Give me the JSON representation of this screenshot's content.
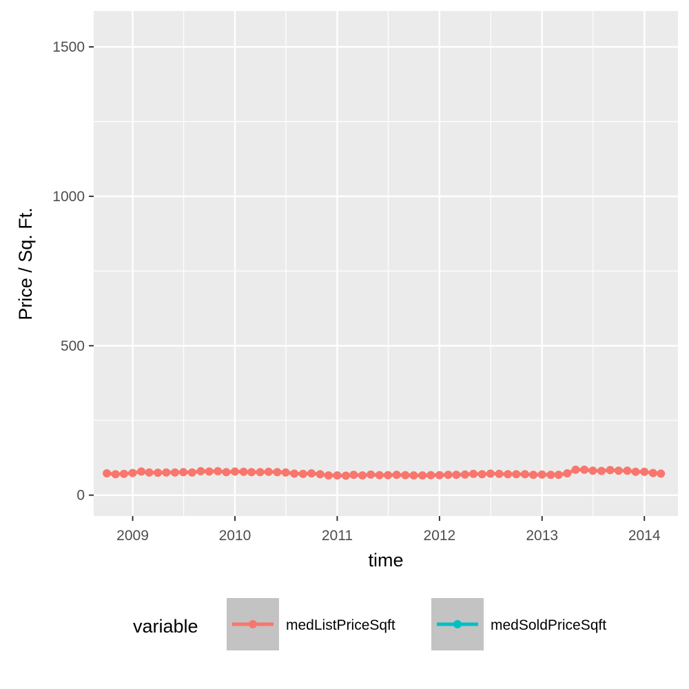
{
  "chart_data": {
    "type": "line",
    "xlabel": "time",
    "ylabel": "Price / Sq. Ft.",
    "xlim": [
      "2008-08-15",
      "2014-05-01"
    ],
    "ylim": [
      -70,
      1620
    ],
    "x_ticks": [
      {
        "date": "2009-01-01",
        "label": "2009"
      },
      {
        "date": "2010-01-01",
        "label": "2010"
      },
      {
        "date": "2011-01-01",
        "label": "2011"
      },
      {
        "date": "2012-01-01",
        "label": "2012"
      },
      {
        "date": "2013-01-01",
        "label": "2013"
      },
      {
        "date": "2014-01-01",
        "label": "2014"
      }
    ],
    "y_ticks": [
      0,
      500,
      1000,
      1500
    ],
    "y_minor": [
      250,
      750,
      1250
    ],
    "grid": true,
    "legend": {
      "title": "variable",
      "position": "bottom",
      "entries": [
        {
          "label": "medListPriceSqft",
          "color": "#F8766D"
        },
        {
          "label": "medSoldPriceSqft",
          "color": "#00BFC4"
        }
      ]
    },
    "series": [
      {
        "name": "medListPriceSqft",
        "color": "#F8766D",
        "x": [
          "2008-10",
          "2008-11",
          "2008-12",
          "2009-01",
          "2009-02",
          "2009-03",
          "2009-04",
          "2009-05",
          "2009-06",
          "2009-07",
          "2009-08",
          "2009-09",
          "2009-10",
          "2009-11",
          "2009-12",
          "2010-01",
          "2010-02",
          "2010-03",
          "2010-04",
          "2010-05",
          "2010-06",
          "2010-07",
          "2010-08",
          "2010-09",
          "2010-10",
          "2010-11",
          "2010-12",
          "2011-01",
          "2011-02",
          "2011-03",
          "2011-04",
          "2011-05",
          "2011-06",
          "2011-07",
          "2011-08",
          "2011-09",
          "2011-10",
          "2011-11",
          "2011-12",
          "2012-01",
          "2012-02",
          "2012-03",
          "2012-04",
          "2012-05",
          "2012-06",
          "2012-07",
          "2012-08",
          "2012-09",
          "2012-10",
          "2012-11",
          "2012-12",
          "2013-01",
          "2013-02",
          "2013-03",
          "2013-04",
          "2013-05",
          "2013-06",
          "2013-07",
          "2013-08",
          "2013-09",
          "2013-10",
          "2013-11",
          "2013-12",
          "2014-01",
          "2014-02",
          "2014-03"
        ],
        "values": [
          73,
          70,
          71,
          74,
          79,
          76,
          75,
          76,
          76,
          77,
          76,
          80,
          79,
          80,
          77,
          79,
          78,
          77,
          77,
          78,
          77,
          76,
          72,
          71,
          73,
          70,
          66,
          66,
          65,
          68,
          66,
          69,
          67,
          67,
          68,
          67,
          66,
          66,
          67,
          67,
          68,
          68,
          69,
          71,
          70,
          72,
          71,
          70,
          70,
          70,
          68,
          69,
          68,
          68,
          73,
          85,
          85,
          82,
          81,
          84,
          82,
          82,
          78,
          78,
          74,
          72
        ]
      },
      {
        "name": "medSoldPriceSqft",
        "color": "#00BFC4",
        "x": [],
        "values": []
      }
    ]
  }
}
